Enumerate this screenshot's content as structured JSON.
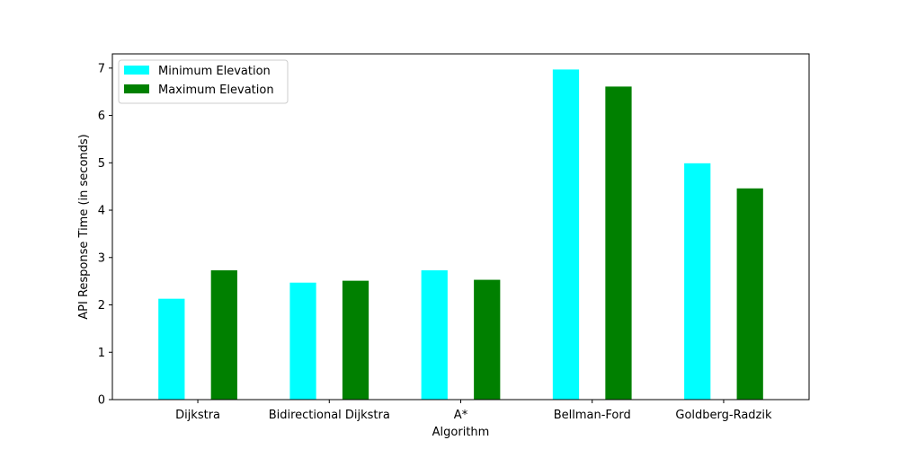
{
  "chart_data": {
    "type": "bar",
    "title": "",
    "xlabel": "Algorithm",
    "ylabel": "API Response Time (in seconds)",
    "categories": [
      "Dijkstra",
      "Bidirectional Dijkstra",
      "A*",
      "Bellman-Ford",
      "Goldberg-Radzik"
    ],
    "series": [
      {
        "name": "Minimum Elevation",
        "color": "#00ffff",
        "values": [
          2.13,
          2.47,
          2.73,
          6.97,
          4.99
        ]
      },
      {
        "name": "Maximum Elevation",
        "color": "#008000",
        "values": [
          2.73,
          2.51,
          2.53,
          6.61,
          4.46
        ]
      }
    ],
    "ylim": [
      0,
      7.3
    ],
    "yticks": [
      0,
      1,
      2,
      3,
      4,
      5,
      6,
      7
    ],
    "grid": false,
    "legend_position": "top-left"
  }
}
